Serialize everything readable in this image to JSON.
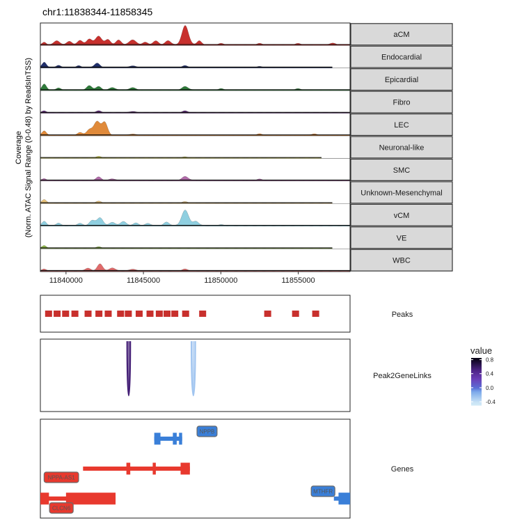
{
  "title": "chr1:11838344-11858345",
  "colors": {
    "aCM": "#c8302d",
    "Endocardial": "#1f2e6b",
    "Epicardial": "#2f7a3a",
    "Fibro": "#5c2a73",
    "LEC": "#e08a3a",
    "Neuronal-like": "#d8d54a",
    "SMC": "#b06aa8",
    "Unknown-Mesenchymal": "#e8c27a",
    "vCM": "#8fcfe0",
    "VE": "#8fb84a",
    "WBC": "#e06a6a",
    "peak": "#c8302d",
    "gene_plus": "#e8392e",
    "gene_minus": "#3a7fd8",
    "strip_fill": "#d9d9d9"
  },
  "chart_data": {
    "type": "area",
    "region": {
      "chrom": "chr1",
      "start": 11838344,
      "end": 11858345
    },
    "ylabel": [
      "Coverage",
      "(Norm. ATAC Signal Range (0-0.48) by ReadsInTSS)"
    ],
    "x_ticks": [
      11840000,
      11845000,
      11850000,
      11855000
    ],
    "x_tick_labels": [
      "11840000",
      "11845000",
      "11850000",
      "11855000"
    ],
    "ylim": [
      0,
      0.48
    ],
    "grid": false,
    "tracks": [
      {
        "name": "aCM",
        "baseline": 0.02,
        "end": 11858345,
        "peaks": [
          {
            "x": 11838600,
            "h": 0.06,
            "w": 180
          },
          {
            "x": 11839400,
            "h": 0.1,
            "w": 250
          },
          {
            "x": 11840200,
            "h": 0.08,
            "w": 250
          },
          {
            "x": 11840900,
            "h": 0.1,
            "w": 250
          },
          {
            "x": 11841500,
            "h": 0.13,
            "w": 260
          },
          {
            "x": 11842100,
            "h": 0.2,
            "w": 300
          },
          {
            "x": 11842700,
            "h": 0.12,
            "w": 250
          },
          {
            "x": 11843400,
            "h": 0.11,
            "w": 250
          },
          {
            "x": 11844300,
            "h": 0.12,
            "w": 300
          },
          {
            "x": 11845100,
            "h": 0.06,
            "w": 250
          },
          {
            "x": 11845800,
            "h": 0.09,
            "w": 260
          },
          {
            "x": 11846600,
            "h": 0.1,
            "w": 250
          },
          {
            "x": 11847700,
            "h": 0.45,
            "w": 300
          },
          {
            "x": 11848600,
            "h": 0.1,
            "w": 200
          },
          {
            "x": 11850000,
            "h": 0.03,
            "w": 250
          },
          {
            "x": 11852500,
            "h": 0.03,
            "w": 250
          },
          {
            "x": 11855000,
            "h": 0.03,
            "w": 250
          },
          {
            "x": 11857200,
            "h": 0.04,
            "w": 250
          }
        ]
      },
      {
        "name": "Endocardial",
        "baseline": 0.02,
        "end": 11857200,
        "peaks": [
          {
            "x": 11838600,
            "h": 0.12,
            "w": 200
          },
          {
            "x": 11839500,
            "h": 0.05,
            "w": 200
          },
          {
            "x": 11840800,
            "h": 0.04,
            "w": 200
          },
          {
            "x": 11842000,
            "h": 0.1,
            "w": 250
          },
          {
            "x": 11844300,
            "h": 0.04,
            "w": 250
          },
          {
            "x": 11847700,
            "h": 0.04,
            "w": 250
          },
          {
            "x": 11852500,
            "h": 0.02,
            "w": 250
          }
        ]
      },
      {
        "name": "Epicardial",
        "baseline": 0.02,
        "end": 11858345,
        "peaks": [
          {
            "x": 11838600,
            "h": 0.14,
            "w": 200
          },
          {
            "x": 11839500,
            "h": 0.05,
            "w": 200
          },
          {
            "x": 11841500,
            "h": 0.1,
            "w": 250
          },
          {
            "x": 11842100,
            "h": 0.08,
            "w": 250
          },
          {
            "x": 11843000,
            "h": 0.06,
            "w": 250
          },
          {
            "x": 11844300,
            "h": 0.06,
            "w": 250
          },
          {
            "x": 11847700,
            "h": 0.08,
            "w": 300
          },
          {
            "x": 11850000,
            "h": 0.03,
            "w": 250
          },
          {
            "x": 11855000,
            "h": 0.03,
            "w": 250
          }
        ]
      },
      {
        "name": "Fibro",
        "baseline": 0.02,
        "end": 11858345,
        "peaks": [
          {
            "x": 11838600,
            "h": 0.04,
            "w": 200
          },
          {
            "x": 11842100,
            "h": 0.04,
            "w": 250
          },
          {
            "x": 11844300,
            "h": 0.03,
            "w": 250
          },
          {
            "x": 11847700,
            "h": 0.04,
            "w": 250
          }
        ]
      },
      {
        "name": "LEC",
        "baseline": 0.02,
        "end": 11858345,
        "peaks": [
          {
            "x": 11838600,
            "h": 0.1,
            "w": 200
          },
          {
            "x": 11840900,
            "h": 0.06,
            "w": 250
          },
          {
            "x": 11841500,
            "h": 0.12,
            "w": 260
          },
          {
            "x": 11842000,
            "h": 0.32,
            "w": 300
          },
          {
            "x": 11842500,
            "h": 0.3,
            "w": 250
          },
          {
            "x": 11844300,
            "h": 0.03,
            "w": 250
          },
          {
            "x": 11852500,
            "h": 0.03,
            "w": 250
          },
          {
            "x": 11856000,
            "h": 0.03,
            "w": 250
          }
        ]
      },
      {
        "name": "Neuronal-like",
        "baseline": 0.02,
        "end": 11856500,
        "peaks": [
          {
            "x": 11842100,
            "h": 0.03,
            "w": 250
          },
          {
            "x": 11847700,
            "h": 0.02,
            "w": 250
          }
        ]
      },
      {
        "name": "SMC",
        "baseline": 0.02,
        "end": 11858345,
        "peaks": [
          {
            "x": 11838600,
            "h": 0.04,
            "w": 200
          },
          {
            "x": 11842100,
            "h": 0.08,
            "w": 250
          },
          {
            "x": 11843000,
            "h": 0.04,
            "w": 250
          },
          {
            "x": 11847700,
            "h": 0.09,
            "w": 300
          },
          {
            "x": 11852500,
            "h": 0.03,
            "w": 250
          }
        ]
      },
      {
        "name": "Unknown-Mesenchymal",
        "baseline": 0.02,
        "end": 11857200,
        "peaks": [
          {
            "x": 11838600,
            "h": 0.08,
            "w": 200
          },
          {
            "x": 11842100,
            "h": 0.04,
            "w": 250
          },
          {
            "x": 11847700,
            "h": 0.03,
            "w": 250
          }
        ]
      },
      {
        "name": "vCM",
        "baseline": 0.02,
        "end": 11858345,
        "peaks": [
          {
            "x": 11838600,
            "h": 0.1,
            "w": 200
          },
          {
            "x": 11839500,
            "h": 0.06,
            "w": 200
          },
          {
            "x": 11840900,
            "h": 0.05,
            "w": 250
          },
          {
            "x": 11841700,
            "h": 0.12,
            "w": 250
          },
          {
            "x": 11842200,
            "h": 0.18,
            "w": 280
          },
          {
            "x": 11843000,
            "h": 0.08,
            "w": 250
          },
          {
            "x": 11843700,
            "h": 0.1,
            "w": 250
          },
          {
            "x": 11844500,
            "h": 0.06,
            "w": 250
          },
          {
            "x": 11845300,
            "h": 0.05,
            "w": 250
          },
          {
            "x": 11846500,
            "h": 0.08,
            "w": 250
          },
          {
            "x": 11847700,
            "h": 0.36,
            "w": 320
          },
          {
            "x": 11848400,
            "h": 0.1,
            "w": 250
          },
          {
            "x": 11850000,
            "h": 0.02,
            "w": 250
          }
        ]
      },
      {
        "name": "VE",
        "baseline": 0.02,
        "end": 11857200,
        "peaks": [
          {
            "x": 11838600,
            "h": 0.06,
            "w": 200
          },
          {
            "x": 11842100,
            "h": 0.03,
            "w": 250
          }
        ]
      },
      {
        "name": "WBC",
        "baseline": 0.02,
        "end": 11858345,
        "peaks": [
          {
            "x": 11838600,
            "h": 0.04,
            "w": 200
          },
          {
            "x": 11841400,
            "h": 0.06,
            "w": 250
          },
          {
            "x": 11842200,
            "h": 0.16,
            "w": 250
          },
          {
            "x": 11843000,
            "h": 0.07,
            "w": 250
          },
          {
            "x": 11844300,
            "h": 0.04,
            "w": 250
          },
          {
            "x": 11847700,
            "h": 0.04,
            "w": 250
          }
        ]
      }
    ],
    "peaks_track": {
      "label": "Peaks",
      "intervals": [
        [
          11838650,
          11839100
        ],
        [
          11839200,
          11839650
        ],
        [
          11839750,
          11840200
        ],
        [
          11840350,
          11840800
        ],
        [
          11841200,
          11841650
        ],
        [
          11841900,
          11842350
        ],
        [
          11842500,
          11842950
        ],
        [
          11843300,
          11843750
        ],
        [
          11843800,
          11844250
        ],
        [
          11844500,
          11844950
        ],
        [
          11845200,
          11845650
        ],
        [
          11845800,
          11846250
        ],
        [
          11846300,
          11846750
        ],
        [
          11846800,
          11847250
        ],
        [
          11847500,
          11847950
        ],
        [
          11848600,
          11849050
        ],
        [
          11852800,
          11853250
        ],
        [
          11854600,
          11855050
        ],
        [
          11855900,
          11856350
        ]
      ]
    },
    "links_track": {
      "label": "Peak2GeneLinks",
      "legend_title": "value",
      "legend_ticks": [
        0.8,
        0.4,
        0.0,
        -0.4
      ],
      "legend_tick_labels": [
        "0.8",
        "0.4",
        "0.0",
        "-0.4"
      ],
      "legend_range": [
        -0.5,
        0.85
      ],
      "links": [
        {
          "a": 11843950,
          "b": 11844150,
          "value": 0.55
        },
        {
          "a": 11848100,
          "b": 11848350,
          "value": -0.25
        }
      ]
    },
    "genes_track": {
      "label": "Genes",
      "genes": [
        {
          "name": "NPPB",
          "strand": "-",
          "row": 0,
          "start": 11845700,
          "end": 11847500,
          "exons": [
            [
              11845700,
              11846100
            ],
            [
              11846900,
              11847150
            ],
            [
              11847300,
              11847500
            ]
          ],
          "label_x": 11849000
        },
        {
          "name": "NPPA-AS1",
          "strand": "+",
          "row": 1,
          "start": 11841100,
          "end": 11848000,
          "exons": [
            [
              11843900,
              11844150
            ],
            [
              11845600,
              11845800
            ],
            [
              11847400,
              11848000
            ]
          ],
          "label_x": 11839700
        },
        {
          "name": "CLCN6",
          "strand": "+",
          "row": 2,
          "start": 11838344,
          "end": 11843200,
          "exons": [
            [
              11838344,
              11838900
            ],
            [
              11840000,
              11843200
            ]
          ],
          "label_x": 11839700
        },
        {
          "name": "MTHFR",
          "strand": "-",
          "row": 2,
          "start": 11857300,
          "end": 11858345,
          "exons": [
            [
              11857600,
              11858345
            ]
          ],
          "label_x": 11856600
        }
      ]
    }
  }
}
